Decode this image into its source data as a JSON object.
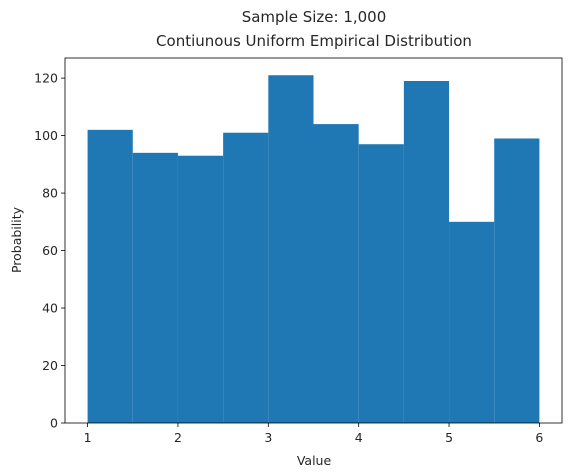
{
  "chart_data": {
    "type": "bar",
    "title_line1": "Sample Size: 1,000",
    "title_line2": "Contiunous Uniform Empirical Distribution",
    "xlabel": "Value",
    "ylabel": "Probability",
    "bin_edges": [
      1.0,
      1.5,
      2.0,
      2.5,
      3.0,
      3.5,
      4.0,
      4.5,
      5.0,
      5.5,
      6.0
    ],
    "values": [
      102,
      94,
      93,
      101,
      121,
      104,
      97,
      119,
      70,
      99
    ],
    "xlim": [
      0.75,
      6.25
    ],
    "ylim": [
      0,
      127
    ],
    "xticks": [
      1,
      2,
      3,
      4,
      5,
      6
    ],
    "yticks": [
      0,
      20,
      40,
      60,
      80,
      100,
      120
    ],
    "bar_color": "#1f77b4",
    "grid": false
  }
}
